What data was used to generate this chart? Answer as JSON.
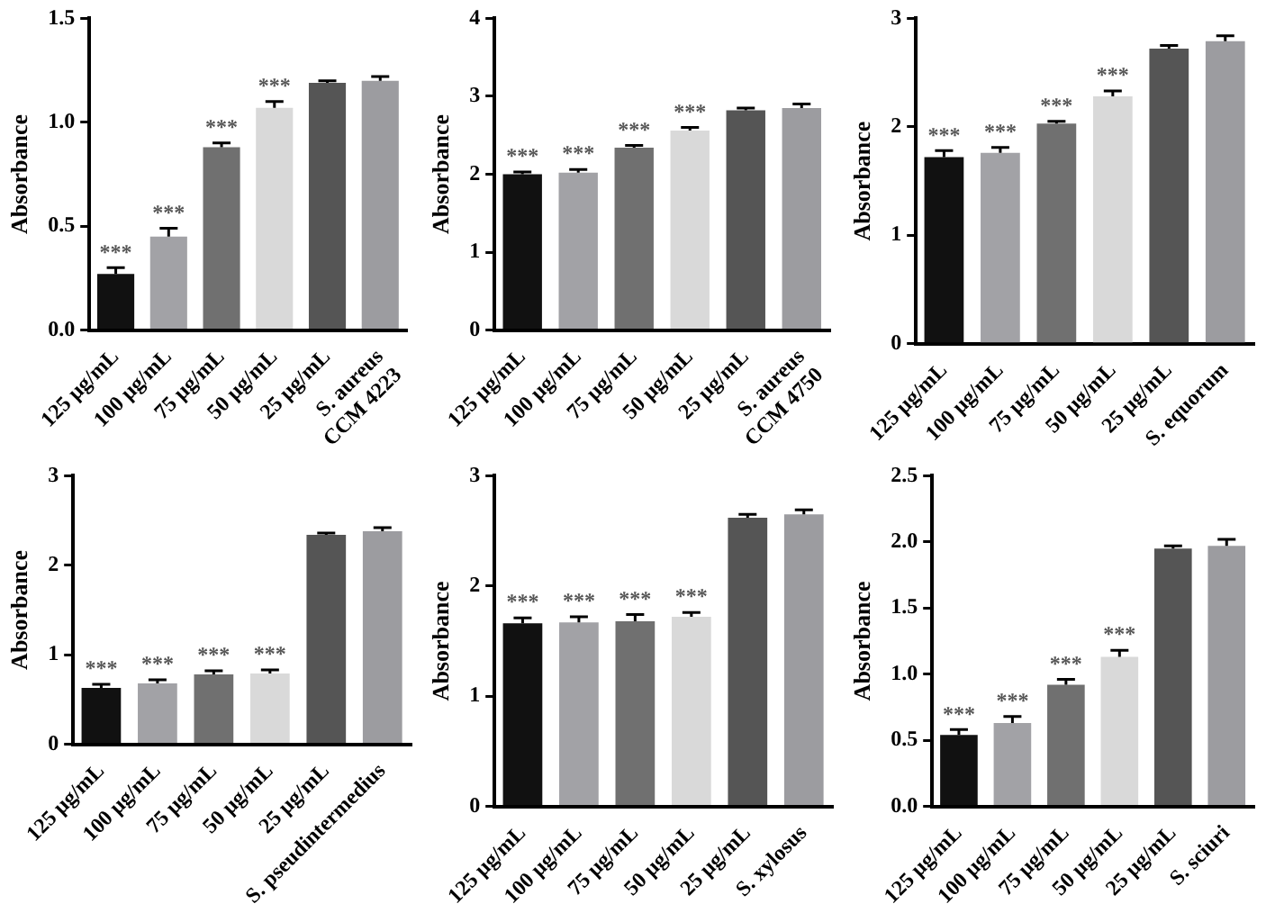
{
  "chart_data": [
    {
      "type": "bar",
      "ylabel": "Absorbance",
      "categories": [
        "125 µg/mL",
        "100 µg/mL",
        "75 µg/mL",
        "50 µg/mL",
        "25 µg/mL",
        "S. aureus\nCCM 4223"
      ],
      "values": [
        0.27,
        0.45,
        0.88,
        1.07,
        1.19,
        1.2
      ],
      "errors": [
        [
          0.27,
          0.3
        ],
        [
          0.45,
          0.49
        ],
        [
          0.88,
          0.9
        ],
        [
          1.07,
          1.1
        ],
        [
          1.19,
          1.2
        ],
        [
          1.2,
          1.22
        ]
      ],
      "colors": [
        "#111111",
        "#a2a2a6",
        "#707070",
        "#d9d9d9",
        "#555555",
        "#9c9ca0"
      ],
      "ylim": [
        0,
        1.5
      ],
      "yticks": [
        {
          "value": 0,
          "label": "0.0"
        },
        {
          "value": 0.5,
          "label": "0.5"
        },
        {
          "value": 1,
          "label": "1.0"
        },
        {
          "value": 1.5,
          "label": "1.5"
        }
      ],
      "grid": false,
      "legend": false,
      "annotations": [
        {
          "text": "***",
          "x": "125 µg/mL",
          "y": 0.3
        },
        {
          "text": "***",
          "x": "100 µg/mL",
          "y": 0.49
        },
        {
          "text": "***",
          "x": "75 µg/mL",
          "y": 0.9
        },
        {
          "text": "***",
          "x": "50 µg/mL",
          "y": 1.1
        }
      ]
    },
    {
      "type": "bar",
      "ylabel": "Absorbance",
      "categories": [
        "125 µg/mL",
        "100 µg/mL",
        "75 µg/mL",
        "50 µg/mL",
        "25 µg/mL",
        "S. aureus\nCCM 4750"
      ],
      "values": [
        2.0,
        2.02,
        2.34,
        2.56,
        2.82,
        2.85
      ],
      "errors": [
        [
          2.0,
          2.03
        ],
        [
          2.02,
          2.06
        ],
        [
          2.34,
          2.37
        ],
        [
          2.56,
          2.6
        ],
        [
          2.82,
          2.85
        ],
        [
          2.85,
          2.9
        ]
      ],
      "colors": [
        "#111111",
        "#a2a2a6",
        "#707070",
        "#d9d9d9",
        "#555555",
        "#9c9ca0"
      ],
      "ylim": [
        0,
        4
      ],
      "yticks": [
        0,
        1,
        2,
        3,
        4
      ],
      "grid": false,
      "legend": false,
      "annotations": [
        {
          "text": "***",
          "x": "125 µg/mL",
          "y": 2.03
        },
        {
          "text": "***",
          "x": "100 µg/mL",
          "y": 2.06
        },
        {
          "text": "***",
          "x": "75 µg/mL",
          "y": 2.37
        },
        {
          "text": "***",
          "x": "50 µg/mL",
          "y": 2.6
        }
      ]
    },
    {
      "type": "bar",
      "ylabel": "Absorbance",
      "categories": [
        "125 µg/mL",
        "100 µg/mL",
        "75 µg/mL",
        "50 µg/mL",
        "25 µg/mL",
        "S. equorum"
      ],
      "values": [
        1.72,
        1.76,
        2.03,
        2.28,
        2.72,
        2.79
      ],
      "errors": [
        [
          1.72,
          1.78
        ],
        [
          1.76,
          1.81
        ],
        [
          2.03,
          2.05
        ],
        [
          2.28,
          2.33
        ],
        [
          2.72,
          2.75
        ],
        [
          2.79,
          2.84
        ]
      ],
      "colors": [
        "#111111",
        "#a2a2a6",
        "#707070",
        "#d9d9d9",
        "#555555",
        "#9c9ca0"
      ],
      "ylim": [
        0,
        3
      ],
      "yticks": [
        0,
        1,
        2,
        3
      ],
      "grid": false,
      "legend": false,
      "annotations": [
        {
          "text": "***",
          "x": "125 µg/mL",
          "y": 1.78
        },
        {
          "text": "***",
          "x": "100 µg/mL",
          "y": 1.81
        },
        {
          "text": "***",
          "x": "75 µg/mL",
          "y": 2.05
        },
        {
          "text": "***",
          "x": "50 µg/mL",
          "y": 2.33
        }
      ]
    },
    {
      "type": "bar",
      "ylabel": "Absorbance",
      "categories": [
        "125 µg/mL",
        "100 µg/mL",
        "75 µg/mL",
        "50 µg/mL",
        "25 µg/mL",
        "S. pseudintermedius"
      ],
      "values": [
        0.63,
        0.68,
        0.78,
        0.79,
        2.34,
        2.38
      ],
      "errors": [
        [
          0.63,
          0.67
        ],
        [
          0.68,
          0.72
        ],
        [
          0.78,
          0.82
        ],
        [
          0.79,
          0.83
        ],
        [
          2.34,
          2.36
        ],
        [
          2.38,
          2.42
        ]
      ],
      "colors": [
        "#111111",
        "#a2a2a6",
        "#707070",
        "#d9d9d9",
        "#555555",
        "#9c9ca0"
      ],
      "ylim": [
        0,
        3
      ],
      "yticks": [
        0,
        1,
        2,
        3
      ],
      "grid": false,
      "legend": false,
      "annotations": [
        {
          "text": "***",
          "x": "125 µg/mL",
          "y": 0.67
        },
        {
          "text": "***",
          "x": "100 µg/mL",
          "y": 0.72
        },
        {
          "text": "***",
          "x": "75 µg/mL",
          "y": 0.82
        },
        {
          "text": "***",
          "x": "50 µg/mL",
          "y": 0.83
        }
      ]
    },
    {
      "type": "bar",
      "ylabel": "Absorbance",
      "categories": [
        "125 µg/mL",
        "100 µg/mL",
        "75 µg/mL",
        "50 µg/mL",
        "25 µg/mL",
        "S. xylosus"
      ],
      "values": [
        1.66,
        1.67,
        1.68,
        1.72,
        2.62,
        2.65
      ],
      "errors": [
        [
          1.66,
          1.71
        ],
        [
          1.67,
          1.72
        ],
        [
          1.68,
          1.74
        ],
        [
          1.72,
          1.76
        ],
        [
          2.62,
          2.65
        ],
        [
          2.65,
          2.69
        ]
      ],
      "colors": [
        "#111111",
        "#a2a2a6",
        "#707070",
        "#d9d9d9",
        "#555555",
        "#9c9ca0"
      ],
      "ylim": [
        0,
        3
      ],
      "yticks": [
        0,
        1,
        2,
        3
      ],
      "grid": false,
      "legend": false,
      "annotations": [
        {
          "text": "***",
          "x": "125 µg/mL",
          "y": 1.71
        },
        {
          "text": "***",
          "x": "100 µg/mL",
          "y": 1.72
        },
        {
          "text": "***",
          "x": "75 µg/mL",
          "y": 1.74
        },
        {
          "text": "***",
          "x": "50 µg/mL",
          "y": 1.76
        }
      ]
    },
    {
      "type": "bar",
      "ylabel": "Absorbance",
      "categories": [
        "125 µg/mL",
        "100 µg/mL",
        "75 µg/mL",
        "50 µg/mL",
        "25 µg/mL",
        "S. sciuri"
      ],
      "values": [
        0.54,
        0.63,
        0.92,
        1.13,
        1.95,
        1.97
      ],
      "errors": [
        [
          0.54,
          0.58
        ],
        [
          0.63,
          0.68
        ],
        [
          0.92,
          0.96
        ],
        [
          1.13,
          1.18
        ],
        [
          1.95,
          1.97
        ],
        [
          1.97,
          2.02
        ]
      ],
      "colors": [
        "#111111",
        "#a2a2a6",
        "#707070",
        "#d9d9d9",
        "#555555",
        "#9c9ca0"
      ],
      "ylim": [
        0,
        2.5
      ],
      "yticks": [
        {
          "value": 0,
          "label": "0.0"
        },
        {
          "value": 0.5,
          "label": "0.5"
        },
        {
          "value": 1,
          "label": "1.0"
        },
        {
          "value": 1.5,
          "label": "1.5"
        },
        {
          "value": 2,
          "label": "2.0"
        },
        {
          "value": 2.5,
          "label": "2.5"
        }
      ],
      "grid": false,
      "legend": false,
      "annotations": [
        {
          "text": "***",
          "x": "125 µg/mL",
          "y": 0.58
        },
        {
          "text": "***",
          "x": "100 µg/mL",
          "y": 0.68
        },
        {
          "text": "***",
          "x": "75 µg/mL",
          "y": 0.96
        },
        {
          "text": "***",
          "x": "50 µg/mL",
          "y": 1.18
        }
      ]
    }
  ]
}
